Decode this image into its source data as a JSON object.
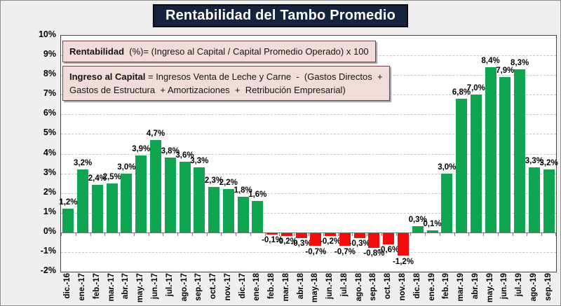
{
  "title": {
    "text": "Rentabilidad del Tambo Promedio",
    "bg_color": "#15233C",
    "text_color": "#ffffff"
  },
  "formula_boxes": [
    {
      "bold": "Rentabilidad",
      "rest": "  (%)= (Ingreso al Capital / Capital Promedio Operado) x 100"
    },
    {
      "bold": "Ingreso al Capital",
      "rest": " = Ingresos Venta de Leche y Carne  -  (Gastos Directos  +",
      "line2": "Gastos de Estructura  + Amortizaciones  +  Retribución Empresarial)"
    }
  ],
  "chart_data": {
    "type": "bar",
    "title": "Rentabilidad del Tambo Promedio",
    "categories": [
      "dic.-16",
      "ene.-17",
      "feb.-17",
      "mar.-17",
      "abr.-17",
      "may.-17",
      "jun.-17",
      "jul.-17",
      "ago.-17",
      "sep.-17",
      "oct.-17",
      "nov.-17",
      "dic.-17",
      "ene.-18",
      "feb.-18",
      "mar.-18",
      "abr.-18",
      "may.-18",
      "jun.-18",
      "jul.-18",
      "ago.-18",
      "sep.-18",
      "oct.-18",
      "nov.-18",
      "dic.-18",
      "ene.-19",
      "feb.-19",
      "mar.-19",
      "abr.-19",
      "may.-19",
      "jun.-19",
      "jul.-19",
      "ago.-19",
      "sep.-19"
    ],
    "values": [
      1.2,
      3.2,
      2.4,
      2.5,
      3.0,
      3.9,
      4.7,
      3.8,
      3.6,
      3.3,
      2.3,
      2.2,
      1.8,
      1.6,
      -0.1,
      -0.2,
      -0.3,
      -0.7,
      -0.2,
      -0.7,
      -0.3,
      -0.8,
      -0.6,
      -1.2,
      0.3,
      0.1,
      3.0,
      6.8,
      7.0,
      8.4,
      7.9,
      8.3,
      3.3,
      3.2
    ],
    "labels": [
      "1,2%",
      "3,2%",
      "2,4%",
      "2,5%",
      "3,0%",
      "3,9%",
      "4,7%",
      "3,8%",
      "3,6%",
      "3,3%",
      "2,3%",
      "2,2%",
      "1,8%",
      "1,6%",
      "-0,1%",
      "-0,2%",
      "-0,3%",
      "-0,7%",
      "-0,2%",
      "-0,7%",
      "-0,3%",
      "-0,8%",
      "-0,6%",
      "-1,2%",
      "0,3%",
      "0,1%",
      "3,0%",
      "6,8%",
      "7,0%",
      "8,4%",
      "7,9%",
      "8,3%",
      "3,3%",
      "3,2%"
    ],
    "xlabel": "",
    "ylabel": "",
    "ylim": [
      -2,
      10
    ],
    "yticks": [
      "10%",
      "9%",
      "8%",
      "7%",
      "6%",
      "5%",
      "4%",
      "3%",
      "2%",
      "1%",
      "0%",
      "-1%",
      "-2%"
    ],
    "grid": "horizontal dashed, solid zero line",
    "legend": "none",
    "positive_color": "#10A551",
    "negative_color": "#F20D0D"
  }
}
